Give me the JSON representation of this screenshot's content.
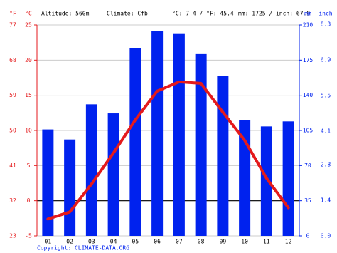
{
  "chart_data": {
    "type": "climate",
    "header": {
      "f_unit": "°F",
      "c_unit": "°C",
      "altitude": "Altitude: 560m",
      "climate": "Climate: Cfb",
      "temp_summary": "°C: 7.4 / °F: 45.4",
      "precip_summary": "mm: 1725 / inch: 67.9",
      "mm_unit": "mm",
      "inch_unit": "inch"
    },
    "copyright": "Copyright: CLIMATE-DATA.ORG",
    "categories": [
      "01",
      "02",
      "03",
      "04",
      "05",
      "06",
      "07",
      "08",
      "09",
      "10",
      "11",
      "12"
    ],
    "series": [
      {
        "name": "Precipitation",
        "color": "#0022ee",
        "axis": "y2",
        "values": [
          106,
          96,
          131,
          122,
          187,
          204,
          201,
          181,
          159,
          115,
          109,
          114
        ]
      },
      {
        "name": "Temperature",
        "color": "#e41a1c",
        "values": [
          -2.6,
          -1.6,
          2.4,
          6.8,
          11.5,
          15.6,
          16.9,
          16.7,
          12.6,
          8.6,
          3.2,
          -1.0
        ]
      }
    ],
    "ylim": [
      -5,
      25
    ],
    "yticks": [
      -5,
      0,
      5,
      10,
      15,
      20,
      25
    ],
    "fticks": [
      23,
      32,
      41,
      50,
      59,
      68,
      77
    ],
    "y2lim": [
      0,
      210
    ],
    "y2ticks": [
      0,
      35,
      70,
      105,
      140,
      175,
      210
    ],
    "inch_ticks": [
      {
        "value": 0,
        "label": "0.0"
      },
      1.4,
      2.8,
      4.1,
      5.5,
      6.9,
      8.3
    ],
    "grid": true
  }
}
